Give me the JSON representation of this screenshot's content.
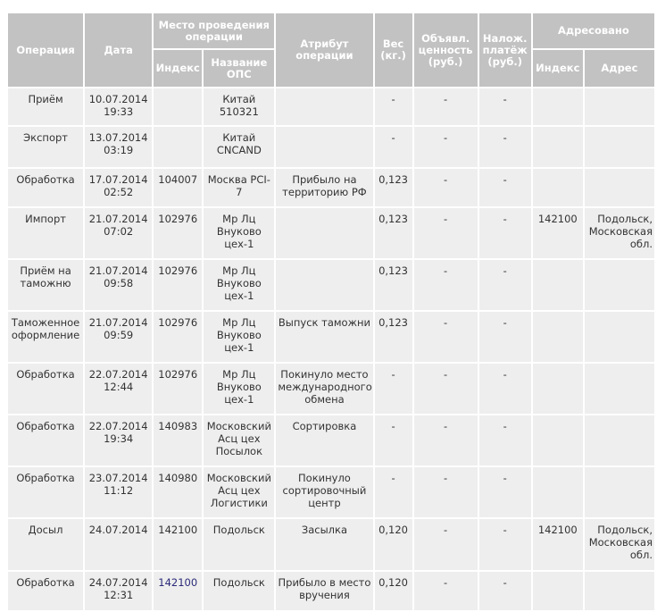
{
  "header": {
    "operation": "Операция",
    "date": "Дата",
    "place": "Место проведения операции",
    "place_index": "Индекс",
    "place_name": "Название ОПС",
    "attribute": "Атрибут операции",
    "weight": "Вес (кг.)",
    "declared_value": "Объявл. ценность (руб.)",
    "cod": "Налож. платёж (руб.)",
    "addressed": "Адресовано",
    "addr_index": "Индекс",
    "addr_address": "Адрес"
  },
  "rows": [
    {
      "op": "Приём",
      "date": "10.07.2014 19:33",
      "idx": "",
      "name": "Китай 510321",
      "attr": "",
      "weight": "-",
      "value": "-",
      "cod": "-",
      "aidx": "",
      "addr": ""
    },
    {
      "op": "Экспорт",
      "date": "13.07.2014 03:19",
      "idx": "",
      "name": "Китай CNCAND",
      "attr": "",
      "weight": "-",
      "value": "-",
      "cod": "-",
      "aidx": "",
      "addr": ""
    },
    {
      "op": "Обработка",
      "date": "17.07.2014 02:52",
      "idx": "104007",
      "name": "Москва PCI-7",
      "attr": "Прибыло на территорию РФ",
      "weight": "0,123",
      "value": "-",
      "cod": "-",
      "aidx": "",
      "addr": ""
    },
    {
      "op": "Импорт",
      "date": "21.07.2014 07:02",
      "idx": "102976",
      "name": "Мр Лц Внуково цех-1",
      "attr": "",
      "weight": "0,123",
      "value": "-",
      "cod": "-",
      "aidx": "142100",
      "addr": "Подольск, Московская обл."
    },
    {
      "op": "Приём на таможню",
      "date": "21.07.2014 09:58",
      "idx": "102976",
      "name": "Мр Лц Внуково цех-1",
      "attr": "",
      "weight": "0,123",
      "value": "-",
      "cod": "-",
      "aidx": "",
      "addr": ""
    },
    {
      "op": "Таможенное оформление",
      "date": "21.07.2014 09:59",
      "idx": "102976",
      "name": "Мр Лц Внуково цех-1",
      "attr": "Выпуск таможни",
      "weight": "0,123",
      "value": "-",
      "cod": "-",
      "aidx": "",
      "addr": ""
    },
    {
      "op": "Обработка",
      "date": "22.07.2014 12:44",
      "idx": "102976",
      "name": "Мр Лц Внуково цех-1",
      "attr": "Покинуло место международного обмена",
      "weight": "-",
      "value": "-",
      "cod": "-",
      "aidx": "",
      "addr": ""
    },
    {
      "op": "Обработка",
      "date": "22.07.2014 19:34",
      "idx": "140983",
      "name": "Московский Асц цех Посылок",
      "attr": "Сортировка",
      "weight": "-",
      "value": "-",
      "cod": "-",
      "aidx": "",
      "addr": ""
    },
    {
      "op": "Обработка",
      "date": "23.07.2014 11:12",
      "idx": "140980",
      "name": "Московский Асц цех Логистики",
      "attr": "Покинуло сортировочный центр",
      "weight": "-",
      "value": "-",
      "cod": "-",
      "aidx": "",
      "addr": ""
    },
    {
      "op": "Досыл",
      "date": "24.07.2014",
      "idx": "142100",
      "name": "Подольск",
      "attr": "Засылка",
      "weight": "0,120",
      "value": "-",
      "cod": "-",
      "aidx": "142100",
      "addr": "Подольск, Московская обл."
    },
    {
      "op": "Обработка",
      "date": "24.07.2014 12:31",
      "idx": "142100",
      "name": "Подольск",
      "attr": "Прибыло в место вручения",
      "weight": "0,120",
      "value": "-",
      "cod": "-",
      "aidx": "",
      "addr": "",
      "idx_link": true
    }
  ],
  "colors": {
    "header_bg": "#c2c2c2",
    "cell_bg": "#eeeeee",
    "link": "#2a2a7a"
  }
}
